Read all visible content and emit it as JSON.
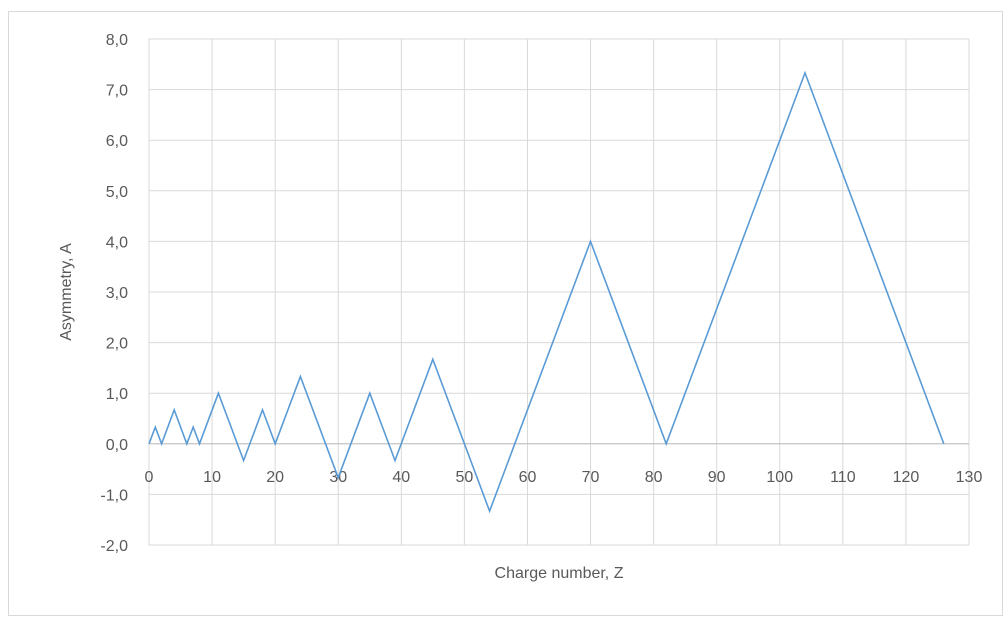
{
  "chart_data": {
    "type": "line",
    "title": "",
    "xlabel": "Charge number, Z",
    "ylabel": "Asymmetry, A",
    "xlim": [
      0,
      130
    ],
    "ylim": [
      -2,
      8
    ],
    "grid": true,
    "x_ticks": [
      "0",
      "10",
      "20",
      "30",
      "40",
      "50",
      "60",
      "70",
      "80",
      "90",
      "100",
      "110",
      "120",
      "130"
    ],
    "y_ticks": [
      "-2,0",
      "-1,0",
      "0,0",
      "1,0",
      "2,0",
      "3,0",
      "4,0",
      "5,0",
      "6,0",
      "7,0",
      "8,0"
    ],
    "series": [
      {
        "color": "#5b9bd5",
        "points": [
          [
            0,
            0.0
          ],
          [
            1,
            0.33
          ],
          [
            2,
            0.0
          ],
          [
            4,
            0.67
          ],
          [
            6,
            0.0
          ],
          [
            7,
            0.33
          ],
          [
            8,
            0.0
          ],
          [
            11,
            1.0
          ],
          [
            15,
            -0.33
          ],
          [
            18,
            0.67
          ],
          [
            20,
            0.0
          ],
          [
            24,
            1.33
          ],
          [
            30,
            -0.67
          ],
          [
            35,
            1.0
          ],
          [
            39,
            -0.33
          ],
          [
            45,
            1.67
          ],
          [
            54,
            -1.33
          ],
          [
            70,
            4.0
          ],
          [
            82,
            0.0
          ],
          [
            104,
            7.33
          ],
          [
            126,
            0.0
          ]
        ]
      }
    ]
  }
}
